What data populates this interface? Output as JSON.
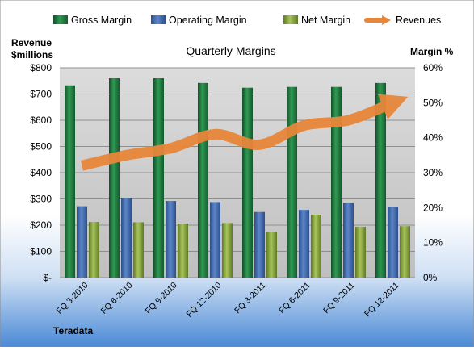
{
  "chart_data": {
    "type": "bar",
    "title": "Quarterly Margins",
    "company": "Teradata",
    "left_axis_title": [
      "Revenue",
      "$millions"
    ],
    "right_axis_title": "Margin %",
    "left_ylim": [
      0,
      800
    ],
    "right_ylim": [
      0,
      60
    ],
    "left_ticks": [
      "$-",
      "$100",
      "$200",
      "$300",
      "$400",
      "$500",
      "$600",
      "$700",
      "$800"
    ],
    "right_ticks": [
      "0%",
      "10%",
      "20%",
      "30%",
      "40%",
      "50%",
      "60%"
    ],
    "categories": [
      "FQ 3-2010",
      "FQ 6-2010",
      "FQ 9-2010",
      "FQ 12-2010",
      "FQ 3-2011",
      "FQ 6-2011",
      "FQ 9-2011",
      "FQ 12-2011"
    ],
    "grid": true,
    "legend_position": "top",
    "series": [
      {
        "name": "Gross Margin",
        "axis": "left",
        "kind": "bar",
        "color": "#2e8b4a",
        "values": [
          733,
          760,
          760,
          742,
          724,
          727,
          727,
          742
        ]
      },
      {
        "name": "Operating Margin",
        "axis": "left",
        "kind": "bar",
        "color": "#4a72b8",
        "values": [
          272,
          304,
          292,
          288,
          250,
          258,
          285,
          270
        ]
      },
      {
        "name": "Net Margin",
        "axis": "left",
        "kind": "bar",
        "color": "#93b048",
        "values": [
          212,
          211,
          206,
          208,
          174,
          240,
          194,
          196
        ]
      },
      {
        "name": "Revenues",
        "axis": "right",
        "kind": "line",
        "color": "#e8863a",
        "values": [
          32,
          35,
          37,
          41,
          38,
          43.5,
          45,
          50
        ]
      }
    ]
  }
}
